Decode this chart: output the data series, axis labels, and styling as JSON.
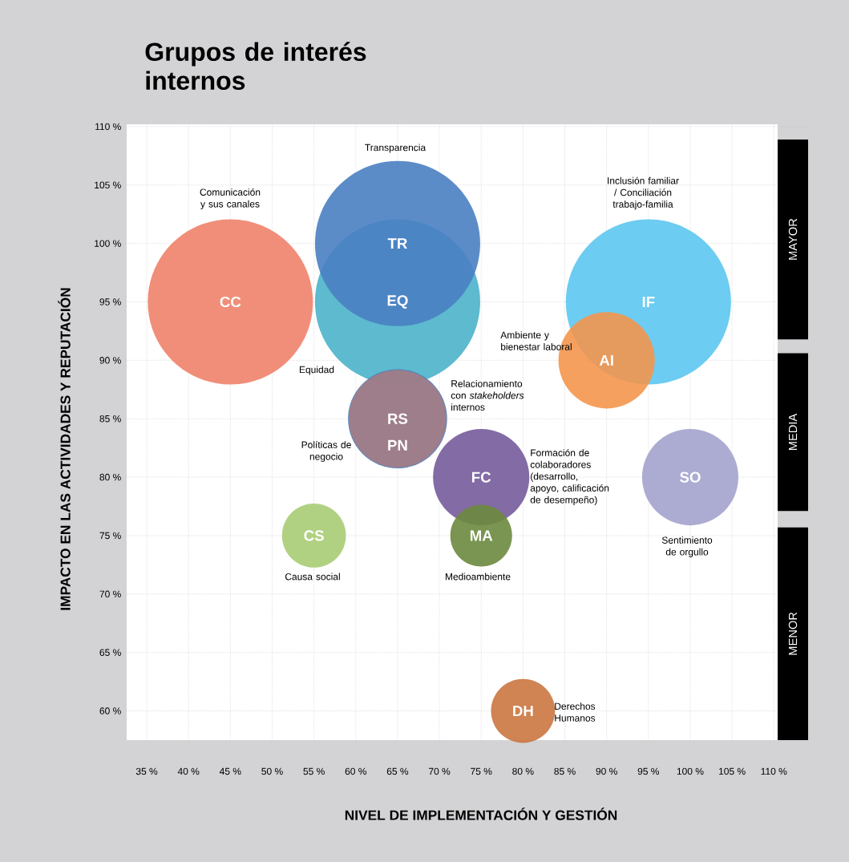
{
  "chart_data": {
    "type": "bubble",
    "title": "Grupos de interés internos",
    "xlabel": "NIVEL DE IMPLEMENTACIÓN Y GESTIÓN",
    "ylabel": "IMPACTO EN LAS ACTIVIDADES Y REPUTACIÓN",
    "xlim": [
      32.6,
      114.1
    ],
    "ylim": [
      57.5,
      110.2
    ],
    "xticks": [
      {
        "value": 35,
        "label": "35 %"
      },
      {
        "value": 40,
        "label": "40 %"
      },
      {
        "value": 45,
        "label": "45 %"
      },
      {
        "value": 50,
        "label": "50 %"
      },
      {
        "value": 55,
        "label": "55 %"
      },
      {
        "value": 60,
        "label": "60 %"
      },
      {
        "value": 65,
        "label": "65 %"
      },
      {
        "value": 70,
        "label": "70 %"
      },
      {
        "value": 75,
        "label": "75 %"
      },
      {
        "value": 80,
        "label": "80 %"
      },
      {
        "value": 85,
        "label": "85 %"
      },
      {
        "value": 90,
        "label": "90 %"
      },
      {
        "value": 95,
        "label": "95 %"
      },
      {
        "value": 100,
        "label": "100 %"
      },
      {
        "value": 105,
        "label": "105 %"
      },
      {
        "value": 110,
        "label": "110 %"
      }
    ],
    "yticks": [
      {
        "value": 60,
        "label": "60 %"
      },
      {
        "value": 65,
        "label": "65 %"
      },
      {
        "value": 70,
        "label": "70 %"
      },
      {
        "value": 75,
        "label": "75 %"
      },
      {
        "value": 80,
        "label": "80 %"
      },
      {
        "value": 85,
        "label": "85 %"
      },
      {
        "value": 90,
        "label": "90 %"
      },
      {
        "value": 95,
        "label": "95 %"
      },
      {
        "value": 100,
        "label": "100 %"
      },
      {
        "value": 105,
        "label": "105 %"
      },
      {
        "value": 110,
        "label": "110 %"
      }
    ],
    "grid": true,
    "series": [
      {
        "name": "CC",
        "color": "#f0826a",
        "x": [
          45
        ],
        "values": [
          95
        ],
        "sizes": [
          1
        ]
      },
      {
        "name": "EQ",
        "color": "#4bb2ca",
        "x": [
          65
        ],
        "values": [
          95
        ],
        "sizes": [
          1
        ]
      },
      {
        "name": "TR",
        "color": "#4a7fc2",
        "x": [
          65
        ],
        "values": [
          100
        ],
        "sizes": [
          1
        ]
      },
      {
        "name": "IF",
        "color": "#5cc6f0",
        "x": [
          95
        ],
        "values": [
          95
        ],
        "sizes": [
          1
        ]
      },
      {
        "name": "AI",
        "color": "#f4964e",
        "x": [
          90
        ],
        "values": [
          90
        ],
        "sizes": [
          0.34
        ]
      },
      {
        "name": "PN",
        "color": "#3d7bbd",
        "x": [
          65
        ],
        "values": [
          85
        ],
        "sizes": [
          0.36
        ]
      },
      {
        "name": "RS",
        "color": "#a67d84",
        "x": [
          65
        ],
        "values": [
          85
        ],
        "sizes": [
          0.35
        ]
      },
      {
        "name": "FC",
        "color": "#755b9b",
        "x": [
          75
        ],
        "values": [
          80
        ],
        "sizes": [
          0.34
        ]
      },
      {
        "name": "SO",
        "color": "#a3a3cd",
        "x": [
          100
        ],
        "values": [
          80
        ],
        "sizes": [
          0.34
        ]
      },
      {
        "name": "CS",
        "color": "#a8cc74",
        "x": [
          55
        ],
        "values": [
          75
        ],
        "sizes": [
          0.15
        ]
      },
      {
        "name": "MA",
        "color": "#6b8a3e",
        "x": [
          75
        ],
        "values": [
          75
        ],
        "sizes": [
          0.14
        ]
      },
      {
        "name": "DH",
        "color": "#cb7640",
        "x": [
          80
        ],
        "values": [
          60
        ],
        "sizes": [
          0.15
        ]
      }
    ],
    "annotations": [
      "Comunicación y sus canales",
      "Transparencia",
      "Equidad",
      "Inclusión familiar / Conciliación trabajo-familia",
      "Ambiente y bienestar laboral",
      "Relacionamiento con *stakeholders* internos",
      "Políticas de negocio",
      "Formación de colaboradores (desarrollo, apoyo, calificación de desempeño)",
      "Sentimiento de orgullo",
      "Causa social",
      "Medioambiente",
      "Derechos Humanos"
    ],
    "bands": [
      {
        "axis": "y",
        "from": 91.8,
        "to": 108.9,
        "label": "MAYOR",
        "color": "#000000"
      },
      {
        "axis": "y",
        "from": 77.1,
        "to": 90.6,
        "label": "MEDIA",
        "color": "#000000"
      },
      {
        "axis": "y",
        "from": 57.5,
        "to": 75.7,
        "label": "MENOR",
        "color": "#000000"
      }
    ]
  }
}
